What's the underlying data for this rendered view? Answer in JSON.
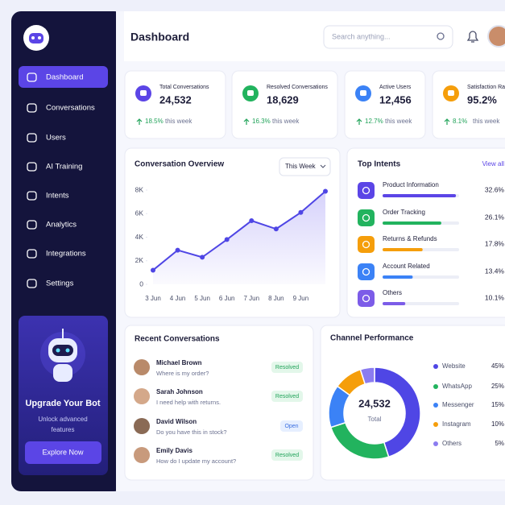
{
  "sidebar": {
    "nav": [
      "Dashboard",
      "Conversations",
      "Users",
      "AI Training",
      "Intents",
      "Analytics",
      "Integrations",
      "Settings"
    ],
    "promo": {
      "title": "Upgrade Your Bot",
      "text_line1": "Unlock advanced",
      "text_line2": "features",
      "button": "Explore Now"
    }
  },
  "header": {
    "title": "Dashboard",
    "search_placeholder": "Search anything..."
  },
  "stats": [
    {
      "label": "Total Conversations",
      "value": "24,532",
      "change": "18.5%",
      "period": "this week",
      "color": "#5b45e6"
    },
    {
      "label": "Resolved Conversations",
      "value": "18,629",
      "change": "16.3%",
      "period": "this week",
      "color": "#22b35e"
    },
    {
      "label": "Active Users",
      "value": "12,456",
      "change": "12.7%",
      "period": "this week",
      "color": "#3b82f6"
    },
    {
      "label": "Satisfaction Rate",
      "value": "95.2%",
      "change": "8.1%",
      "period": "this week",
      "color": "#f59e0b"
    }
  ],
  "conversation_overview": {
    "type": "line",
    "title": "Conversation Overview",
    "filter": "This Week",
    "categories": [
      "3 Jun",
      "4 Jun",
      "5 Jun",
      "6 Jun",
      "7 Jun",
      "8 Jun",
      "9 Jun",
      null
    ],
    "values": [
      1200,
      2900,
      2300,
      3800,
      5400,
      4700,
      6100,
      7900
    ],
    "color": "#4f46e5",
    "ylim": [
      0,
      8000
    ],
    "yticks": [
      0,
      {
        "value": 2000,
        "label": "2K"
      },
      {
        "value": 4000,
        "label": "4K"
      },
      {
        "value": 6000,
        "label": "6K"
      },
      {
        "value": 8000,
        "label": "8K"
      }
    ]
  },
  "top_intents": {
    "type": "bar",
    "title": "Top Intents",
    "link": "View all",
    "categories": [
      "Product Information",
      "Order Tracking",
      "Returns & Refunds",
      "Account Related",
      "Others"
    ],
    "values": [
      32.6,
      26.1,
      17.8,
      13.4,
      10.1
    ],
    "value_labels": [
      "32.6%",
      "26.1%",
      "17.8%",
      "13.4%",
      "10.1%"
    ],
    "colors": [
      "#5b45e6",
      "#22b35e",
      "#f59e0b",
      "#3b82f6",
      "#7c5ce8"
    ],
    "xlim": [
      0,
      34
    ]
  },
  "recent_conversations": {
    "title": "Recent Conversations",
    "items": [
      {
        "name": "Michael Brown",
        "message": "Where is my order?",
        "status": "Resolved"
      },
      {
        "name": "Sarah Johnson",
        "message": "I need help with returns.",
        "status": "Resolved"
      },
      {
        "name": "David Wilson",
        "message": "Do you have this in stock?",
        "status": "Open"
      },
      {
        "name": "Emily Davis",
        "message": "How do I update my account?",
        "status": "Resolved"
      }
    ]
  },
  "channel_performance": {
    "type": "pie",
    "title": "Channel Performance",
    "center_value": "24,532",
    "center_label": "Total",
    "categories": [
      "Website",
      "WhatsApp",
      "Messenger",
      "Instagram",
      "Others"
    ],
    "values": [
      45,
      25,
      15,
      10,
      5
    ],
    "value_labels": [
      "45%",
      "25%",
      "15%",
      "10%",
      "5%"
    ],
    "colors": [
      "#4f46e5",
      "#22b35e",
      "#3b82f6",
      "#f59e0b",
      "#8b7cf0"
    ]
  }
}
